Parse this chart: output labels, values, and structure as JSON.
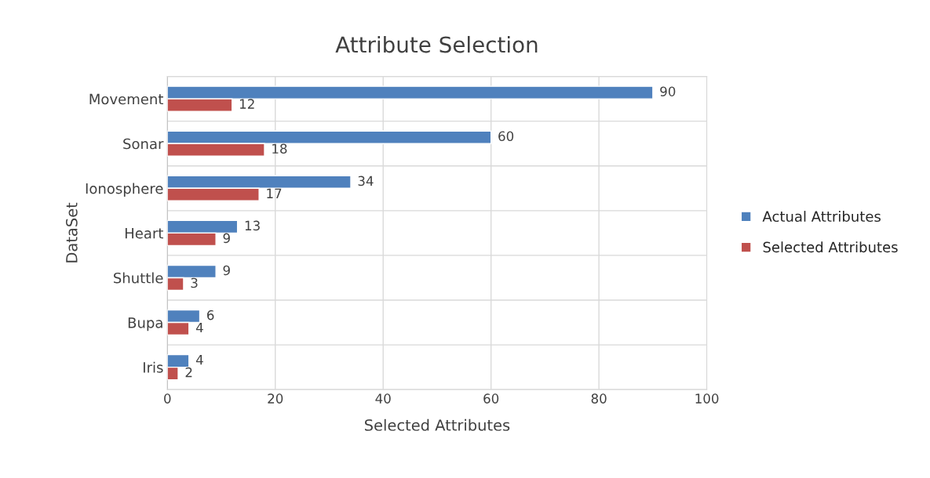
{
  "chart_data": {
    "type": "bar",
    "orientation": "horizontal",
    "title": "Attribute Selection",
    "xlabel": "Selected Attributes",
    "ylabel": "DataSet",
    "categories": [
      "Movement",
      "Sonar",
      "Ionosphere",
      "Heart",
      "Shuttle",
      "Bupa",
      "Iris"
    ],
    "series": [
      {
        "name": "Actual Attributes",
        "color": "#4f81bd",
        "values": [
          90,
          60,
          34,
          13,
          9,
          6,
          4
        ]
      },
      {
        "name": "Selected Attributes",
        "color": "#c0504d",
        "values": [
          12,
          18,
          17,
          9,
          3,
          4,
          2
        ]
      }
    ],
    "xlim": [
      0,
      100
    ],
    "xticks": [
      0,
      20,
      40,
      60,
      80,
      100
    ],
    "grid": true,
    "legend": "right",
    "data_labels": true
  }
}
